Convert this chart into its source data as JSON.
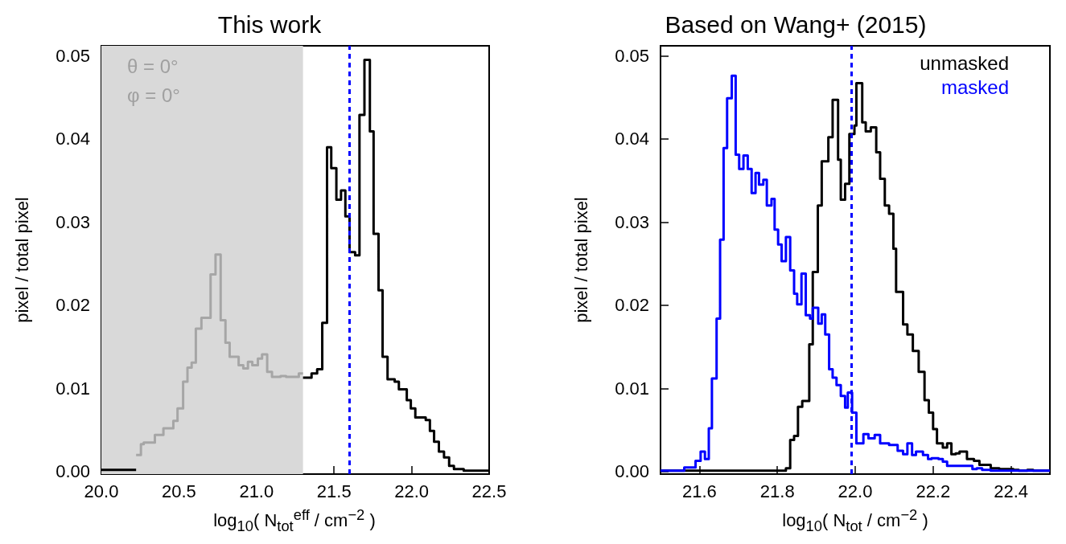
{
  "chart_data": [
    {
      "type": "step",
      "title": "This work",
      "xlabel": "log$_{10}$( N$_{tot}$$^{eff}$ / cm$^{−2}$ )",
      "ylabel": "pixel / total pixel",
      "xlim": [
        20.0,
        22.5
      ],
      "xticks": [
        {
          "value": 20.0,
          "label": "20.0"
        },
        {
          "value": 20.5,
          "label": "20.5"
        },
        {
          "value": 21.0,
          "label": "21.0"
        },
        {
          "value": 21.5,
          "label": "21.5"
        },
        {
          "value": 22.0,
          "label": "22.0"
        },
        {
          "value": 22.5,
          "label": "22.5"
        }
      ],
      "ylim": [
        -0.0003,
        0.0512
      ],
      "yticks": [
        {
          "value": 0,
          "label": "0.00"
        },
        {
          "value": 0.01,
          "label": "0.01"
        },
        {
          "value": 0.02,
          "label": "0.02"
        },
        {
          "value": 0.03,
          "label": "0.03"
        },
        {
          "value": 0.04,
          "label": "0.04"
        },
        {
          "value": 0.05,
          "label": "0.05"
        }
      ],
      "series": [
        {
          "color": "#a6a6a6",
          "x": [
            20.224,
            20.255,
            20.273,
            20.345,
            20.4,
            20.464,
            20.491,
            20.527,
            20.555,
            20.582,
            20.609,
            20.645,
            20.704,
            20.736,
            20.769,
            20.8,
            20.827,
            20.885,
            20.915,
            20.945,
            20.973,
            21.009,
            21.036,
            21.069,
            21.1,
            21.155,
            21.191,
            21.273,
            21.3
          ],
          "values": [
            0.002,
            0.0033,
            0.0035,
            0.0044,
            0.0052,
            0.0061,
            0.0076,
            0.0108,
            0.0125,
            0.0131,
            0.0172,
            0.0185,
            0.0237,
            0.0261,
            0.0182,
            0.0155,
            0.0138,
            0.0128,
            0.0124,
            0.0132,
            0.0128,
            0.0136,
            0.0141,
            0.012,
            0.0114,
            0.0115,
            0.0114,
            0.0118,
            0.0118
          ]
        },
        {
          "color": "#000000",
          "x": [
            20.0,
            20.224,
            21.3,
            21.355,
            21.391,
            21.424,
            21.455,
            21.482,
            21.515,
            21.545,
            21.573,
            21.6,
            21.636,
            21.664,
            21.696,
            21.731,
            21.755,
            21.787,
            21.813,
            21.845,
            21.891,
            21.918,
            21.969,
            21.995,
            22.024,
            22.091,
            22.118,
            22.145,
            22.176,
            22.209,
            22.242,
            22.273,
            22.336,
            22.5
          ],
          "values": [
            0.0002,
            null,
            0.0113,
            0.0118,
            0.0123,
            0.0179,
            0.039,
            0.0365,
            0.0327,
            0.0338,
            0.0307,
            0.0264,
            0.026,
            0.0429,
            0.0495,
            0.0409,
            0.0286,
            0.0218,
            0.0138,
            0.0111,
            0.0108,
            0.0099,
            0.0086,
            0.0076,
            0.0065,
            0.0062,
            0.0049,
            0.0036,
            0.0024,
            0.0017,
            0.0007,
            0.0003,
            0.0001,
            0.0001
          ]
        }
      ],
      "bands": [
        {
          "axis": "x",
          "from": 20.0,
          "to": 21.3,
          "color": "#d9d9d9"
        }
      ],
      "ref_lines": [
        {
          "axis": "x",
          "value": 21.6,
          "color": "#0000ff",
          "line_style": "dashed"
        }
      ],
      "annotations": [
        "θ = 0°",
        "φ = 0°"
      ],
      "grid": false
    },
    {
      "type": "step",
      "title": "Based on Wang+ (2015)",
      "xlabel": "log$_{10}$( N$_{tot}$ / cm$^{−2}$ )",
      "ylabel": "pixel / total pixel",
      "xlim": [
        21.5,
        22.5
      ],
      "xticks": [
        {
          "value": 21.6,
          "label": "21.6"
        },
        {
          "value": 21.8,
          "label": "21.8"
        },
        {
          "value": 22.0,
          "label": "22.0"
        },
        {
          "value": 22.2,
          "label": "22.2"
        },
        {
          "value": 22.4,
          "label": "22.4"
        }
      ],
      "ylim": [
        -0.0003,
        0.0512
      ],
      "yticks": [
        {
          "value": 0,
          "label": "0.00"
        },
        {
          "value": 0.01,
          "label": "0.01"
        },
        {
          "value": 0.02,
          "label": "0.02"
        },
        {
          "value": 0.03,
          "label": "0.03"
        },
        {
          "value": 0.04,
          "label": "0.04"
        },
        {
          "value": 0.05,
          "label": "0.05"
        }
      ],
      "series": [
        {
          "name": "unmasked",
          "color": "#000000",
          "x": [
            21.5,
            21.822,
            21.833,
            21.843,
            21.853,
            21.864,
            21.882,
            21.891,
            21.904,
            21.914,
            21.931,
            21.942,
            21.956,
            21.963,
            21.974,
            21.985,
            21.998,
            22.003,
            22.018,
            22.027,
            22.04,
            22.054,
            22.064,
            22.076,
            22.087,
            22.098,
            22.105,
            22.123,
            22.134,
            22.148,
            22.163,
            22.178,
            22.189,
            22.2,
            22.21,
            22.225,
            22.236,
            22.247,
            22.258,
            22.268,
            22.287,
            22.305,
            22.319,
            22.348,
            22.37,
            22.406,
            22.42,
            22.442,
            22.457,
            22.5
          ],
          "values": [
            0.0001,
            0.0004,
            0.0038,
            0.0043,
            0.0078,
            0.0085,
            0.0153,
            0.024,
            0.032,
            0.0373,
            0.0402,
            0.0447,
            0.0375,
            0.0327,
            0.0346,
            0.0406,
            0.0416,
            0.0467,
            0.042,
            0.0409,
            0.0414,
            0.0384,
            0.0352,
            0.032,
            0.031,
            0.0268,
            0.0216,
            0.0177,
            0.0165,
            0.0145,
            0.012,
            0.0086,
            0.0071,
            0.0051,
            0.0034,
            0.0029,
            0.0034,
            0.0021,
            0.0022,
            0.0024,
            0.0015,
            0.0013,
            0.0008,
            0.0004,
            0.0003,
            0.0002,
            0.0001,
            0.0002,
            0.0001,
            0.0001
          ]
        },
        {
          "name": "masked",
          "color": "#0000ff",
          "x": [
            21.5,
            21.561,
            21.59,
            21.603,
            21.614,
            21.624,
            21.632,
            21.644,
            21.653,
            21.662,
            21.671,
            21.683,
            21.693,
            21.702,
            21.713,
            21.724,
            21.734,
            21.744,
            21.753,
            21.764,
            21.773,
            21.785,
            21.793,
            21.802,
            21.811,
            21.822,
            21.833,
            21.843,
            21.851,
            21.862,
            21.873,
            21.884,
            21.891,
            21.905,
            21.914,
            21.923,
            21.933,
            21.942,
            21.952,
            21.963,
            21.974,
            21.981,
            21.992,
            22.003,
            22.021,
            22.034,
            22.05,
            22.064,
            22.087,
            22.109,
            22.123,
            22.134,
            22.146,
            22.156,
            22.174,
            22.187,
            22.196,
            22.214,
            22.225,
            22.236,
            22.301,
            22.312,
            22.326,
            22.348,
            22.5
          ],
          "values": [
            0.0001,
            0.0005,
            0.0013,
            0.0024,
            0.0015,
            0.0052,
            0.0112,
            0.0184,
            0.0279,
            0.0389,
            0.0449,
            0.0476,
            0.0381,
            0.0364,
            0.038,
            0.0364,
            0.0335,
            0.0359,
            0.0345,
            0.0351,
            0.032,
            0.0328,
            0.0291,
            0.0273,
            0.0253,
            0.0282,
            0.0242,
            0.0214,
            0.0201,
            0.0238,
            0.0188,
            0.0184,
            0.0197,
            0.0178,
            0.0189,
            0.0165,
            0.0123,
            0.0113,
            0.0104,
            0.0091,
            0.0077,
            0.0095,
            0.0071,
            0.0034,
            0.0045,
            0.004,
            0.0044,
            0.0034,
            0.0032,
            0.0025,
            0.0021,
            0.0034,
            0.002,
            0.0024,
            0.002,
            0.0015,
            0.0016,
            0.0015,
            0.0012,
            0.0007,
            0.0003,
            0.0004,
            0.0002,
            0.0001,
            0.0001
          ]
        }
      ],
      "ref_lines": [
        {
          "axis": "x",
          "value": 21.99,
          "color": "#0000ff",
          "line_style": "dashed"
        }
      ],
      "grid": false
    }
  ]
}
